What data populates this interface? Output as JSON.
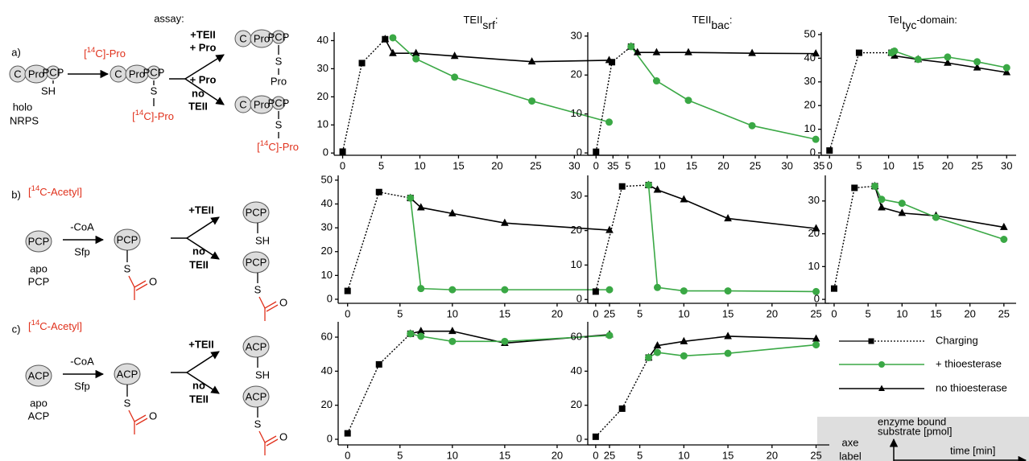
{
  "chart_data": [
    {
      "type": "line",
      "title": "TEII",
      "title_sub": "srf",
      "title_suffix": ":",
      "xlim": [
        -1.1,
        35.8
      ],
      "ylim": [
        -0.8,
        43
      ],
      "xticks": [
        0,
        5,
        10,
        15,
        20,
        25,
        30,
        35
      ],
      "yticks": [
        0,
        10,
        20,
        30,
        40
      ],
      "series": [
        {
          "name": "Charging",
          "color": "#000000",
          "marker": "square",
          "dash": true,
          "x": [
            0,
            2.5,
            5.5
          ],
          "values": [
            0.5,
            32,
            40.5
          ]
        },
        {
          "name": "+ thioesterase",
          "color": "#3aa845",
          "marker": "circle",
          "dash": false,
          "x": [
            6.5,
            9.5,
            14.5,
            24.5,
            34.5
          ],
          "values": [
            41,
            33.5,
            27,
            18.5,
            11
          ]
        },
        {
          "name": "no thioesterase",
          "color": "#000000",
          "marker": "triangle",
          "dash": false,
          "x": [
            5.5,
            6.5,
            9.5,
            14.5,
            24.5,
            34.5
          ],
          "values": [
            40.5,
            35.5,
            35.5,
            34.5,
            32.5,
            33
          ]
        }
      ]
    },
    {
      "type": "line",
      "title": "TEII",
      "title_sub": "bac",
      "title_suffix": ":",
      "xlim": [
        -1.3,
        36.5
      ],
      "ylim": [
        -0.6,
        31
      ],
      "xticks": [
        0,
        5,
        10,
        15,
        20,
        25,
        30,
        35
      ],
      "yticks": [
        0,
        10,
        20,
        30
      ],
      "series": [
        {
          "name": "Charging",
          "color": "#000000",
          "marker": "square",
          "dash": true,
          "x": [
            0,
            2.5,
            5.5
          ],
          "values": [
            0.3,
            23.3,
            27.3
          ]
        },
        {
          "name": "+ thioesterase",
          "color": "#3aa845",
          "marker": "circle",
          "dash": false,
          "x": [
            5.5,
            9.5,
            14.5,
            24.5,
            34.5
          ],
          "values": [
            27.3,
            18.5,
            13.5,
            7,
            3.5
          ]
        },
        {
          "name": "no thioesterase",
          "color": "#000000",
          "marker": "triangle",
          "dash": false,
          "x": [
            5.5,
            6.5,
            9.5,
            14.5,
            24.5,
            34.5
          ],
          "values": [
            27.3,
            25.8,
            25.8,
            25.8,
            25.6,
            25.5
          ]
        }
      ]
    },
    {
      "type": "line",
      "title": "TeI",
      "title_sub": "tyc",
      "title_suffix": "-domain:",
      "xlim": [
        -1.4,
        31.6
      ],
      "ylim": [
        -1,
        51
      ],
      "xticks": [
        0,
        5,
        10,
        15,
        20,
        25,
        30
      ],
      "yticks": [
        0,
        10,
        20,
        30,
        40,
        50
      ],
      "series": [
        {
          "name": "Charging",
          "color": "#000000",
          "marker": "square",
          "dash": true,
          "x": [
            0,
            5,
            10.5
          ],
          "values": [
            1,
            42.3,
            42.3
          ]
        },
        {
          "name": "+ thioesterase",
          "color": "#3aa845",
          "marker": "circle",
          "dash": false,
          "x": [
            10.5,
            11,
            15,
            20,
            25,
            30
          ],
          "values": [
            42.3,
            43,
            39.5,
            40.5,
            38.5,
            36
          ]
        },
        {
          "name": "no thioesterase",
          "color": "#000000",
          "marker": "triangle",
          "dash": false,
          "x": [
            10.5,
            11,
            15,
            20,
            25,
            30
          ],
          "values": [
            42.3,
            41,
            39.5,
            38,
            36,
            34
          ]
        }
      ]
    },
    {
      "type": "line",
      "xlim": [
        -0.9,
        26
      ],
      "ylim": [
        -1.7,
        52
      ],
      "xticks": [
        0,
        5,
        10,
        15,
        20,
        25
      ],
      "yticks": [
        0,
        10,
        20,
        30,
        40,
        50
      ],
      "series": [
        {
          "name": "Charging",
          "color": "#000000",
          "marker": "square",
          "dash": true,
          "x": [
            0,
            3,
            6
          ],
          "values": [
            3.5,
            45,
            42.5
          ]
        },
        {
          "name": "+ thioesterase",
          "color": "#3aa845",
          "marker": "circle",
          "dash": false,
          "x": [
            6,
            7,
            10,
            15,
            25
          ],
          "values": [
            42.5,
            4.5,
            4,
            4,
            4
          ]
        },
        {
          "name": "no thioesterase",
          "color": "#000000",
          "marker": "triangle",
          "dash": false,
          "x": [
            6,
            7,
            10,
            15,
            25
          ],
          "values": [
            42.5,
            38.5,
            36,
            32,
            29
          ]
        }
      ]
    },
    {
      "type": "line",
      "xlim": [
        -0.9,
        26.5
      ],
      "ylim": [
        -1.1,
        36
      ],
      "xticks": [
        0,
        5,
        10,
        15,
        20,
        25
      ],
      "yticks": [
        0,
        10,
        20,
        30
      ],
      "series": [
        {
          "name": "Charging",
          "color": "#000000",
          "marker": "square",
          "dash": true,
          "x": [
            0,
            3,
            6
          ],
          "values": [
            2.3,
            32.8,
            33.2
          ]
        },
        {
          "name": "+ thioesterase",
          "color": "#3aa845",
          "marker": "circle",
          "dash": false,
          "x": [
            6,
            7,
            10,
            15,
            25
          ],
          "values": [
            33.2,
            3.5,
            2.5,
            2.5,
            2.3
          ]
        },
        {
          "name": "no thioesterase",
          "color": "#000000",
          "marker": "triangle",
          "dash": false,
          "x": [
            6,
            7,
            10,
            15,
            25
          ],
          "values": [
            33.2,
            31.8,
            29,
            23.5,
            20.6
          ]
        }
      ]
    },
    {
      "type": "line",
      "xlim": [
        -1.3,
        26.8
      ],
      "ylim": [
        -1.2,
        37.8
      ],
      "xticks": [
        0,
        5,
        10,
        15,
        20,
        25
      ],
      "yticks": [
        0,
        10,
        20,
        30
      ],
      "series": [
        {
          "name": "Charging",
          "color": "#000000",
          "marker": "square",
          "dash": true,
          "x": [
            0,
            3,
            6
          ],
          "values": [
            3.3,
            34,
            34.5
          ]
        },
        {
          "name": "+ thioesterase",
          "color": "#3aa845",
          "marker": "circle",
          "dash": false,
          "x": [
            6,
            7,
            10,
            15,
            25
          ],
          "values": [
            34.5,
            30.5,
            29.3,
            25,
            18.3
          ]
        },
        {
          "name": "no thioesterase",
          "color": "#000000",
          "marker": "triangle",
          "dash": false,
          "x": [
            6,
            7,
            10,
            15,
            25
          ],
          "values": [
            34.5,
            28,
            26.3,
            25.5,
            22
          ]
        }
      ]
    },
    {
      "type": "line",
      "xlim": [
        -0.9,
        26
      ],
      "ylim": [
        -3.3,
        69
      ],
      "xticks": [
        0,
        5,
        10,
        15,
        20,
        25
      ],
      "yticks": [
        0,
        20,
        40,
        60
      ],
      "series": [
        {
          "name": "Charging",
          "color": "#000000",
          "marker": "square",
          "dash": true,
          "x": [
            0,
            3,
            6
          ],
          "values": [
            3.5,
            44,
            62
          ]
        },
        {
          "name": "+ thioesterase",
          "color": "#3aa845",
          "marker": "circle",
          "dash": false,
          "x": [
            6,
            7,
            10,
            15,
            25
          ],
          "values": [
            62,
            60.5,
            57.5,
            57.5,
            61
          ]
        },
        {
          "name": "no thioesterase",
          "color": "#000000",
          "marker": "triangle",
          "dash": false,
          "x": [
            6,
            7,
            10,
            15,
            25
          ],
          "values": [
            62,
            63.5,
            63.5,
            56.5,
            61.5
          ]
        }
      ]
    },
    {
      "type": "line",
      "xlim": [
        -0.9,
        26.5
      ],
      "ylim": [
        -3.3,
        69
      ],
      "xticks": [
        0,
        5,
        10,
        15,
        20,
        25
      ],
      "yticks": [
        0,
        20,
        40,
        60
      ],
      "series": [
        {
          "name": "Charging",
          "color": "#000000",
          "marker": "square",
          "dash": true,
          "x": [
            0,
            3,
            6
          ],
          "values": [
            1.5,
            18,
            48
          ]
        },
        {
          "name": "+ thioesterase",
          "color": "#3aa845",
          "marker": "circle",
          "dash": false,
          "x": [
            6,
            7,
            10,
            15,
            25
          ],
          "values": [
            48,
            51,
            49,
            50.5,
            55.5
          ]
        },
        {
          "name": "no thioesterase",
          "color": "#000000",
          "marker": "triangle",
          "dash": false,
          "x": [
            6,
            7,
            10,
            15,
            25
          ],
          "values": [
            48,
            55,
            57.5,
            60.5,
            59
          ]
        }
      ]
    }
  ],
  "assay": {
    "heading": "assay:",
    "a": {
      "label": "a)",
      "reagent": [
        "[",
        "14",
        "C]-Pro"
      ],
      "start": [
        "C",
        "Pro",
        "PCP"
      ],
      "start_thiol": "SH",
      "start_name": [
        "holo",
        "NRPS"
      ],
      "loaded": [
        "C",
        "Pro",
        "PCP"
      ],
      "loaded_s": "S",
      "loaded_acyl": [
        "[",
        "14",
        "C]-Pro"
      ],
      "up_cond": [
        "+TEII",
        "+ Pro"
      ],
      "down_cond": [
        "+ Pro",
        "no",
        "TEII"
      ],
      "up": [
        "C",
        "Pro",
        "PCP"
      ],
      "up_s": "S",
      "up_acyl": "Pro",
      "down": [
        "C",
        "Pro",
        "PCP"
      ],
      "down_s": "S",
      "down_acyl": [
        "[",
        "14",
        "C]-Pro"
      ]
    },
    "b": {
      "label": "b)",
      "reagent": [
        "[",
        "14",
        "C-Acetyl]"
      ],
      "start": "PCP",
      "start_name": [
        "apo",
        "PCP"
      ],
      "above_arrow": "-CoA",
      "below_arrow": "Sfp",
      "loaded": "PCP",
      "loaded_s": "S",
      "loaded_o": "O",
      "up_cond": "+TEII",
      "down_cond": [
        "no",
        "TEII"
      ],
      "up": "PCP",
      "up_thiol": "SH",
      "down": "PCP",
      "down_s": "S",
      "down_o": "O"
    },
    "c": {
      "label": "c)",
      "reagent": [
        "[",
        "14",
        "C-Acetyl]"
      ],
      "start": "ACP",
      "start_name": [
        "apo",
        "ACP"
      ],
      "above_arrow": "-CoA",
      "below_arrow": "Sfp",
      "loaded": "ACP",
      "loaded_s": "S",
      "loaded_o": "O",
      "up_cond": "+TEII",
      "down_cond": [
        "no",
        "TEII"
      ],
      "up": "ACP",
      "up_thiol": "SH",
      "down": "ACP",
      "down_s": "S",
      "down_o": "O"
    }
  },
  "axes_key": {
    "heading": [
      "axe",
      "label"
    ],
    "y_label": [
      "enzyme bound",
      "substrate [pmol]"
    ],
    "x_label": "time [min]"
  }
}
